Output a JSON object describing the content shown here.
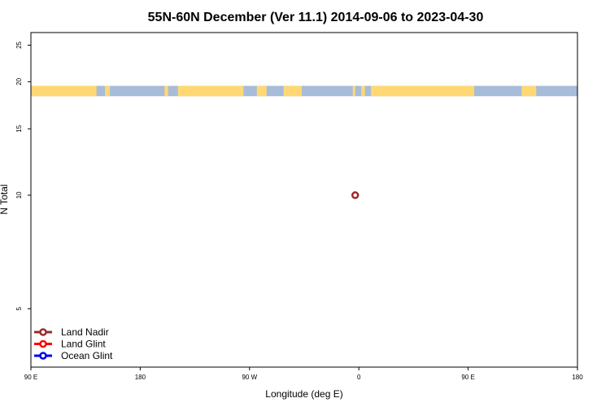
{
  "chart_data": {
    "type": "scatter",
    "title": "55N-60N December (Ver 11.1)   2014-09-06 to 2023-04-30",
    "xlabel": "Longitude (deg E)",
    "ylabel": "N Total",
    "x_ticks": [
      {
        "value": 90,
        "label": "90 E"
      },
      {
        "value": 180,
        "label": "180"
      },
      {
        "value": 270,
        "label": "90 W"
      },
      {
        "value": 360,
        "label": "0"
      },
      {
        "value": 450,
        "label": "90 E"
      },
      {
        "value": 540,
        "label": "180"
      }
    ],
    "y_ticks": [
      {
        "value": 5,
        "label": "5"
      },
      {
        "value": 10,
        "label": "10"
      },
      {
        "value": 15,
        "label": "15"
      },
      {
        "value": 20,
        "label": "20"
      },
      {
        "value": 25,
        "label": "25"
      }
    ],
    "xlim": [
      90,
      540
    ],
    "ylim": [
      3.5,
      27
    ],
    "y_scale": "log",
    "grid": false,
    "legend_position": "bottom-left",
    "series": [
      {
        "name": "Land Nadir",
        "color": "#9b2a2a",
        "points": [
          {
            "x": 357,
            "y": 10
          }
        ]
      },
      {
        "name": "Land Glint",
        "color": "#ff0000",
        "points": []
      },
      {
        "name": "Ocean Glint",
        "color": "#0000ee",
        "points": []
      }
    ],
    "map_strip": {
      "y_range": [
        18.3,
        19.5
      ],
      "ocean_color": "#a7bcd9",
      "land_color": "#ffd873",
      "land_segments": [
        [
          90,
          144
        ],
        [
          151,
          155
        ],
        [
          200,
          203
        ],
        [
          211,
          265
        ],
        [
          276,
          284
        ],
        [
          298,
          313
        ],
        [
          355,
          357
        ],
        [
          362,
          365
        ],
        [
          370,
          455
        ],
        [
          494,
          506
        ]
      ]
    }
  }
}
